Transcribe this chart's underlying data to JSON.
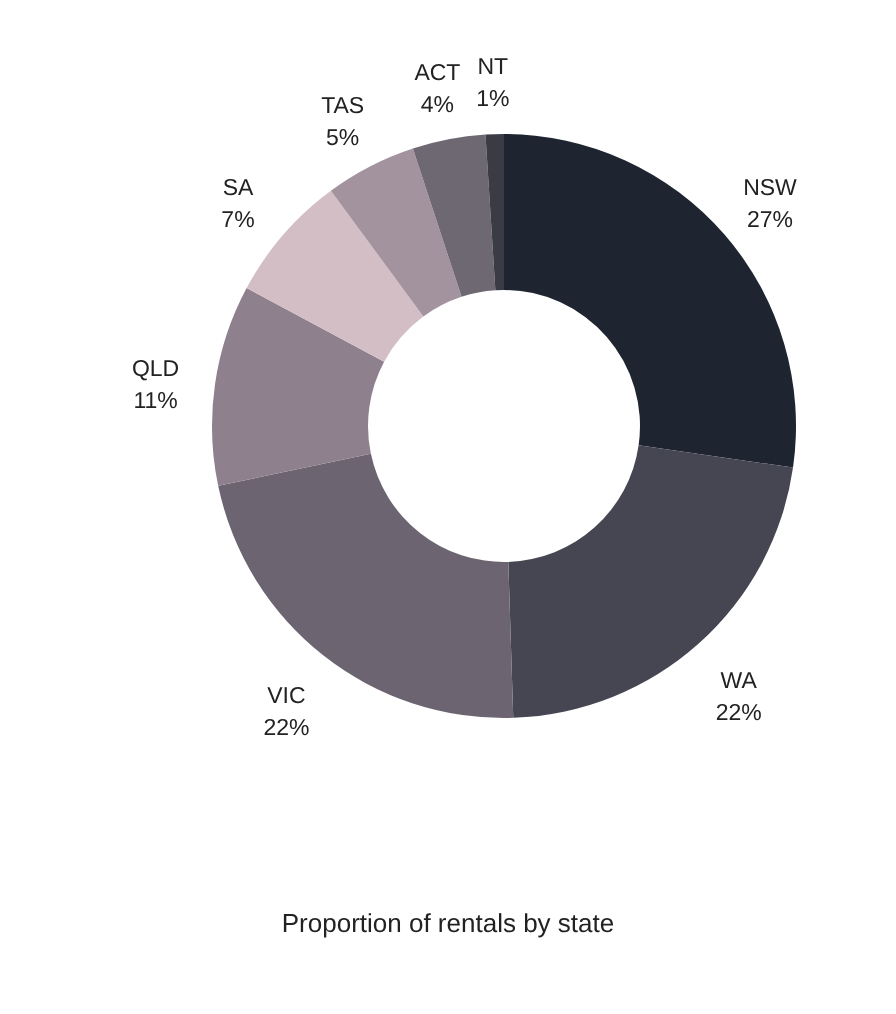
{
  "chart_data": {
    "type": "donut",
    "title": "Proportion of rentals by state",
    "categories": [
      "NSW",
      "WA",
      "VIC",
      "QLD",
      "SA",
      "TAS",
      "ACT",
      "NT"
    ],
    "values": [
      27,
      22,
      22,
      11,
      7,
      5,
      4,
      1
    ],
    "colors": [
      "#1f2530",
      "#454652",
      "#6c6470",
      "#8f808d",
      "#d3bec6",
      "#a3939e",
      "#6e6873",
      "#3b3b45"
    ],
    "value_labels": [
      "27%",
      "22%",
      "22%",
      "11%",
      "7%",
      "5%",
      "4%",
      "1%"
    ]
  }
}
